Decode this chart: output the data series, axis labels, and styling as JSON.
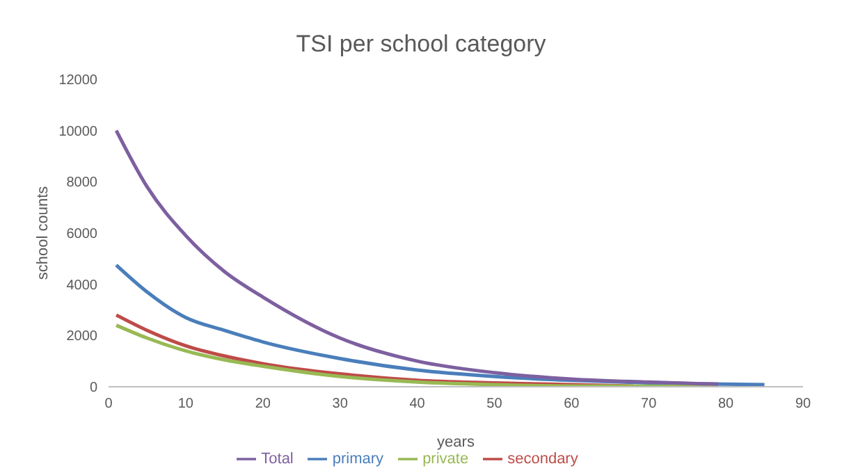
{
  "chart_data": {
    "type": "line",
    "title": "TSI per school category",
    "xlabel": "years",
    "ylabel": "school counts",
    "xlim": [
      0,
      90
    ],
    "xticks": [
      0,
      10,
      20,
      30,
      40,
      50,
      60,
      70,
      80,
      90
    ],
    "ylim": [
      0,
      12000
    ],
    "yticks": [
      0,
      2000,
      4000,
      6000,
      8000,
      10000,
      12000
    ],
    "grid": false,
    "legend": "bottom",
    "marker": "none",
    "line_style": "solid",
    "series": [
      {
        "name": "primary",
        "color": "#4a7ebb",
        "x": [
          1,
          5,
          10,
          15,
          20,
          30,
          40,
          50,
          60,
          70,
          80,
          85
        ],
        "values": [
          4750,
          3700,
          2700,
          2200,
          1750,
          1100,
          650,
          400,
          250,
          150,
          100,
          80
        ]
      },
      {
        "name": "secondary",
        "color": "#be4b48",
        "x": [
          1,
          5,
          10,
          15,
          20,
          30,
          40,
          50,
          60,
          68
        ],
        "values": [
          2800,
          2200,
          1600,
          1200,
          900,
          500,
          250,
          150,
          80,
          30
        ]
      },
      {
        "name": "private",
        "color": "#98b954",
        "x": [
          1,
          5,
          10,
          15,
          20,
          30,
          40,
          50,
          60,
          79
        ],
        "values": [
          2400,
          1900,
          1400,
          1050,
          800,
          400,
          180,
          80,
          30,
          10
        ]
      },
      {
        "name": "Total",
        "color": "#7d60a0",
        "x": [
          1,
          5,
          10,
          15,
          20,
          30,
          40,
          50,
          60,
          70,
          79
        ],
        "values": [
          10000,
          7800,
          5900,
          4500,
          3500,
          1900,
          1000,
          550,
          300,
          180,
          100
        ]
      }
    ]
  }
}
